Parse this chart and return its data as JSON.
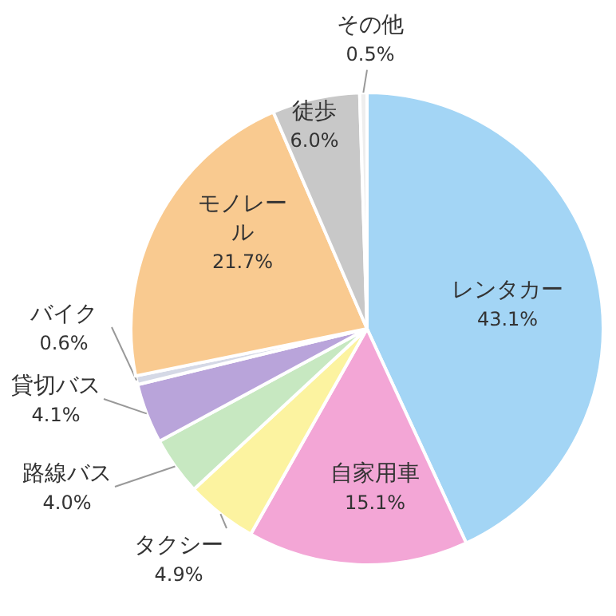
{
  "chart_data": {
    "type": "pie",
    "categories": [
      "レンタカー",
      "自家用車",
      "タクシー",
      "路線バス",
      "貸切バス",
      "バイク",
      "モノレール",
      "徒歩",
      "その他"
    ],
    "values": [
      43.1,
      15.1,
      4.9,
      4.0,
      4.1,
      0.6,
      21.7,
      6.0,
      0.5
    ],
    "value_labels": [
      "43.1%",
      "15.1%",
      "4.9%",
      "4.0%",
      "4.1%",
      "0.6%",
      "21.7%",
      "6.0%",
      "0.5%"
    ],
    "colors": [
      "#a3d5f5",
      "#f3a6d6",
      "#fcf3a0",
      "#c7e8c1",
      "#b9a4da",
      "#d5d9e6",
      "#f9ca90",
      "#c8c8c8",
      "#eeeeee"
    ]
  }
}
